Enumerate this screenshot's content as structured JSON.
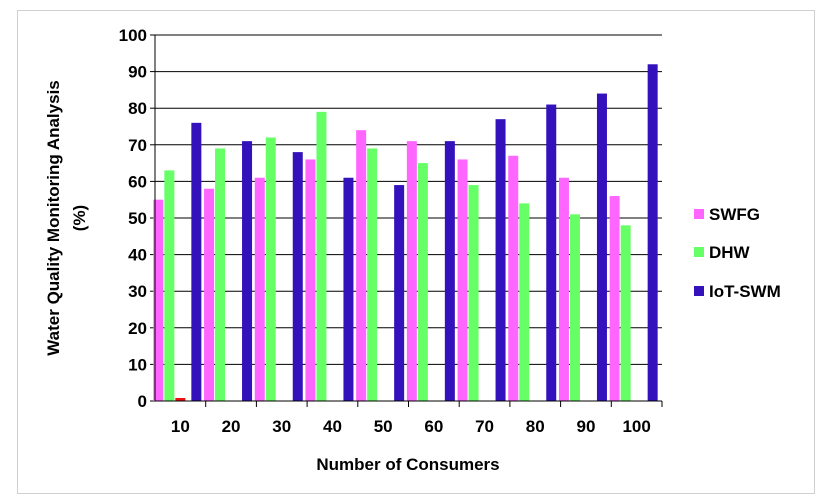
{
  "chart_data": {
    "type": "bar",
    "xlabel": "Number of Consumers",
    "ylabel_lines": [
      "Water Quality Monitoring Analysis",
      "(%)"
    ],
    "categories": [
      "10",
      "20",
      "30",
      "40",
      "50",
      "60",
      "70",
      "80",
      "90",
      "100"
    ],
    "ylim": [
      0,
      100
    ],
    "yticks": [
      0,
      10,
      20,
      30,
      40,
      50,
      60,
      70,
      80,
      90,
      100
    ],
    "grid": true,
    "legend_position": "right",
    "series": [
      {
        "name": "SWFG",
        "color": "#ff66ff",
        "values": [
          55,
          58,
          61,
          66,
          74,
          71,
          66,
          67,
          61,
          56
        ]
      },
      {
        "name": "DHW",
        "color": "#66ff66",
        "values": [
          63,
          69,
          72,
          79,
          69,
          65,
          59,
          54,
          51,
          48
        ]
      },
      {
        "name": "IoT-SWM",
        "color": "#3311bb",
        "values": [
          76,
          71,
          68,
          61,
          59,
          71,
          77,
          81,
          84,
          92
        ]
      }
    ]
  }
}
